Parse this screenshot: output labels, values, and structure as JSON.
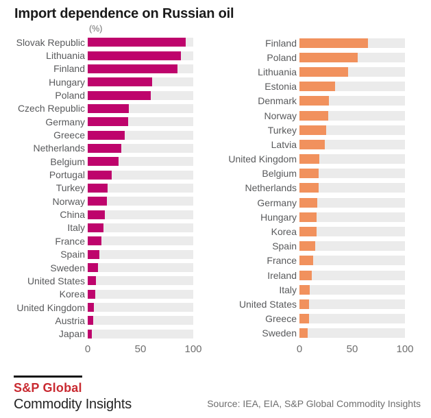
{
  "title": "Import dependence on Russian oil",
  "unit_label": "(%)",
  "colors": {
    "left_bar": "#be046c",
    "right_bar": "#f1915d",
    "track": "#ebebeb",
    "logo_red": "#c92a31",
    "title_text": "#1a1a1a",
    "label_text": "#58595b",
    "axis_text": "#6e6e6e"
  },
  "chart_data": [
    {
      "type": "bar",
      "orientation": "horizontal",
      "unit": "%",
      "color_key": "left_bar",
      "xlim": [
        0,
        100
      ],
      "xticks": [
        0,
        50,
        100
      ],
      "categories": [
        "Slovak Republic",
        "Lithuania",
        "Finland",
        "Hungary",
        "Poland",
        "Czech Republic",
        "Germany",
        "Greece",
        "Netherlands",
        "Belgium",
        "Portugal",
        "Turkey",
        "Norway",
        "China",
        "Italy",
        "France",
        "Spain",
        "Sweden",
        "United States",
        "Korea",
        "United Kingdom",
        "Austria",
        "Japan"
      ],
      "values": [
        93,
        88,
        85,
        61,
        60,
        39,
        38,
        35,
        32,
        29,
        23,
        19,
        18,
        16,
        15,
        13,
        11,
        10,
        8,
        7,
        6,
        5,
        4
      ]
    },
    {
      "type": "bar",
      "orientation": "horizontal",
      "unit": "%",
      "color_key": "right_bar",
      "xlim": [
        0,
        100
      ],
      "xticks": [
        0,
        50,
        100
      ],
      "categories": [
        "Finland",
        "Poland",
        "Lithuania",
        "Estonia",
        "Denmark",
        "Norway",
        "Turkey",
        "Latvia",
        "United Kingdom",
        "Belgium",
        "Netherlands",
        "Germany",
        "Hungary",
        "Korea",
        "Spain",
        "France",
        "Ireland",
        "Italy",
        "United States",
        "Greece",
        "Sweden"
      ],
      "values": [
        65,
        55,
        46,
        34,
        28,
        27,
        25,
        24,
        19,
        18,
        18,
        17,
        16,
        16,
        15,
        13,
        12,
        10,
        9,
        9,
        8
      ]
    }
  ],
  "footer": {
    "logo_line1": "S&P Global",
    "logo_line2": "Commodity Insights",
    "source": "Source: IEA, EIA, S&P Global Commodity Insights"
  }
}
